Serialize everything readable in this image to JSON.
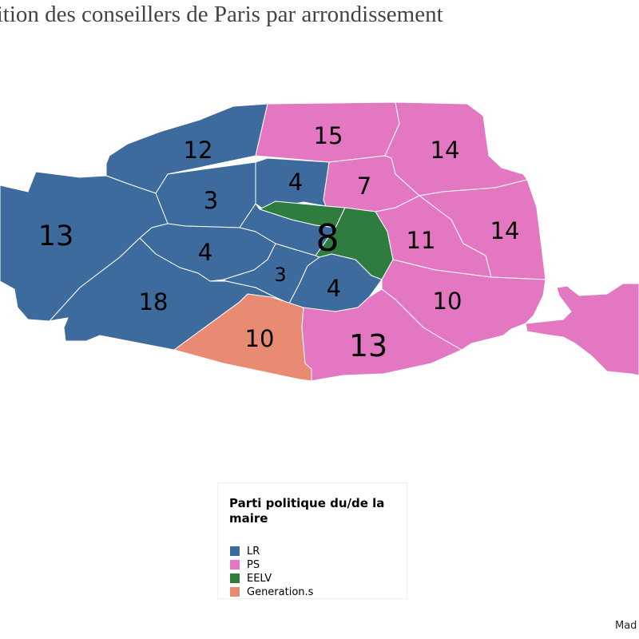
{
  "title": "rtition des conseillers de Paris par arrondissement",
  "credit": "Mad",
  "colors": {
    "LR": "#3d6b9e",
    "PS": "#e377c2",
    "EELV": "#2e7d3e",
    "Generation.s": "#e88b72"
  },
  "legend": {
    "title": "Parti politique du/de la maire",
    "items": [
      {
        "label": "LR",
        "color": "#3d6b9e"
      },
      {
        "label": "PS",
        "color": "#e377c2"
      },
      {
        "label": "EELV",
        "color": "#2e7d3e"
      },
      {
        "label": "Generation.s",
        "color": "#e88b72"
      }
    ]
  },
  "arrondissements": [
    {
      "id": "17",
      "party": "LR",
      "councillors": "12"
    },
    {
      "id": "18",
      "party": "PS",
      "councillors": "15"
    },
    {
      "id": "19",
      "party": "PS",
      "councillors": "14"
    },
    {
      "id": "8",
      "party": "LR",
      "councillors": "3"
    },
    {
      "id": "9",
      "party": "LR",
      "councillors": "4"
    },
    {
      "id": "10",
      "party": "PS",
      "councillors": "7"
    },
    {
      "id": "centre",
      "party": "EELV",
      "councillors": "8"
    },
    {
      "id": "20",
      "party": "PS",
      "councillors": "14"
    },
    {
      "id": "11",
      "party": "PS",
      "councillors": "11"
    },
    {
      "id": "16",
      "party": "LR",
      "councillors": "13"
    },
    {
      "id": "7",
      "party": "LR",
      "councillors": "4"
    },
    {
      "id": "6",
      "party": "LR",
      "councillors": "3"
    },
    {
      "id": "5",
      "party": "LR",
      "councillors": "4"
    },
    {
      "id": "12",
      "party": "PS",
      "councillors": "10"
    },
    {
      "id": "15",
      "party": "LR",
      "councillors": "18"
    },
    {
      "id": "14",
      "party": "Generation.s",
      "councillors": "10"
    },
    {
      "id": "13",
      "party": "PS",
      "councillors": "13"
    }
  ]
}
